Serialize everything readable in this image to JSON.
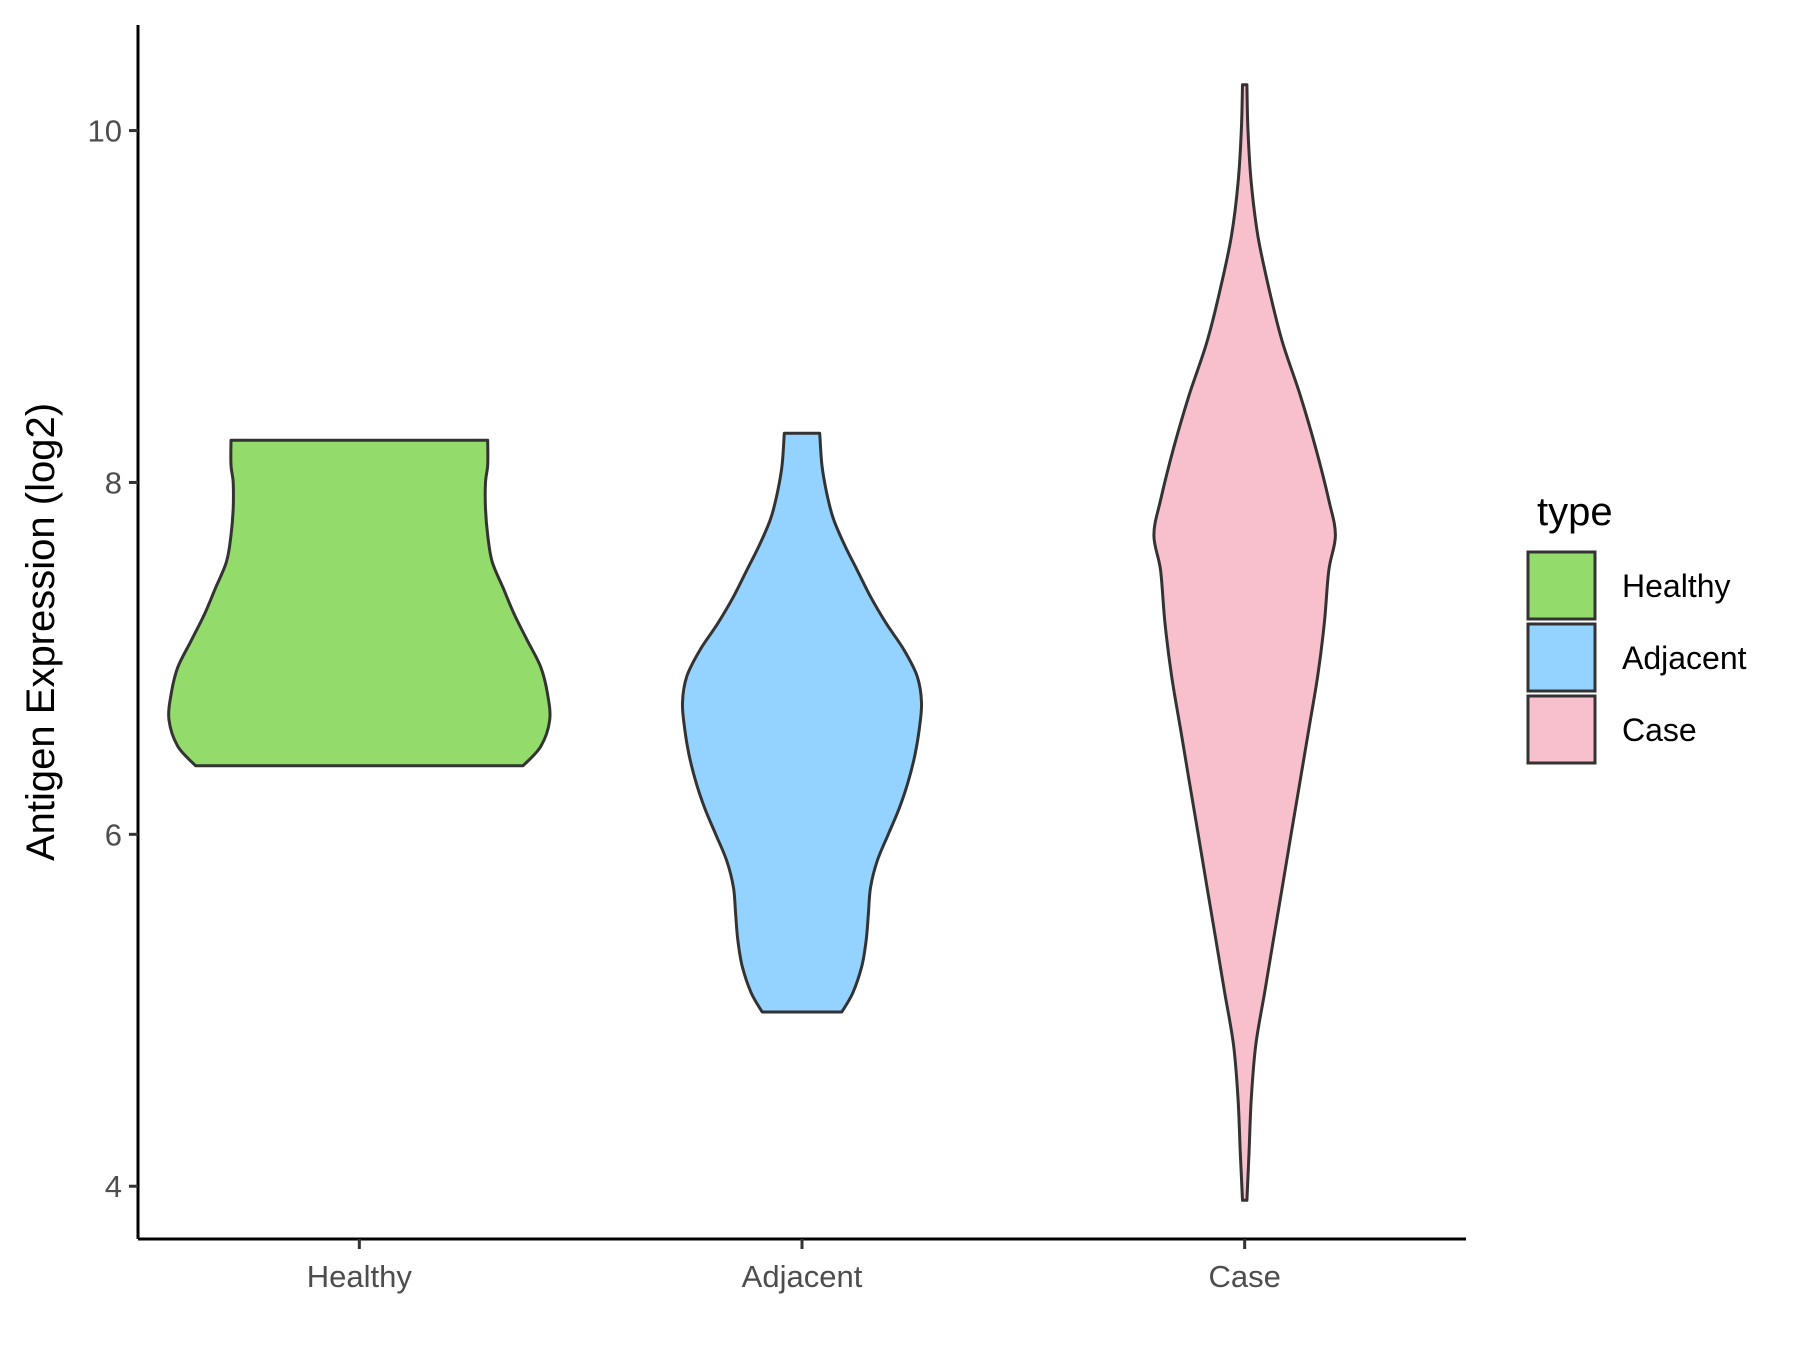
{
  "chart_data": {
    "type": "violin",
    "title": "",
    "xlabel": "",
    "ylabel": "Antigen Expression (log2)",
    "ylim": [
      3.7,
      10.6
    ],
    "yticks": [
      4,
      6,
      8,
      10
    ],
    "categories": [
      "Healthy",
      "Adjacent",
      "Case"
    ],
    "legend": {
      "title": "type",
      "placement": "right",
      "entries": [
        "Healthy",
        "Adjacent",
        "Case"
      ]
    },
    "grid": false,
    "series": [
      {
        "name": "Healthy",
        "color": "#93DB6A",
        "min": 6.39,
        "max": 8.24,
        "profile": [
          [
            6.39,
            0.74
          ],
          [
            6.5,
            0.82
          ],
          [
            6.65,
            0.86
          ],
          [
            6.8,
            0.85
          ],
          [
            6.95,
            0.82
          ],
          [
            7.1,
            0.76
          ],
          [
            7.25,
            0.7
          ],
          [
            7.4,
            0.65
          ],
          [
            7.55,
            0.6
          ],
          [
            7.7,
            0.58
          ],
          [
            7.85,
            0.57
          ],
          [
            8.0,
            0.57
          ],
          [
            8.1,
            0.58
          ],
          [
            8.24,
            0.58
          ]
        ]
      },
      {
        "name": "Adjacent",
        "color": "#94D2FF",
        "min": 4.99,
        "max": 8.28,
        "profile": [
          [
            4.99,
            0.18
          ],
          [
            5.1,
            0.23
          ],
          [
            5.25,
            0.27
          ],
          [
            5.4,
            0.29
          ],
          [
            5.55,
            0.3
          ],
          [
            5.7,
            0.31
          ],
          [
            5.85,
            0.34
          ],
          [
            6.0,
            0.39
          ],
          [
            6.15,
            0.44
          ],
          [
            6.3,
            0.48
          ],
          [
            6.45,
            0.51
          ],
          [
            6.6,
            0.53
          ],
          [
            6.75,
            0.54
          ],
          [
            6.9,
            0.52
          ],
          [
            7.05,
            0.46
          ],
          [
            7.2,
            0.38
          ],
          [
            7.35,
            0.31
          ],
          [
            7.5,
            0.25
          ],
          [
            7.65,
            0.19
          ],
          [
            7.8,
            0.14
          ],
          [
            7.95,
            0.11
          ],
          [
            8.1,
            0.09
          ],
          [
            8.28,
            0.08
          ]
        ]
      },
      {
        "name": "Case",
        "color": "#F8C0CC",
        "min": 3.92,
        "max": 10.26,
        "profile": [
          [
            3.92,
            0.01
          ],
          [
            4.2,
            0.02
          ],
          [
            4.5,
            0.03
          ],
          [
            4.8,
            0.05
          ],
          [
            5.1,
            0.09
          ],
          [
            5.4,
            0.13
          ],
          [
            5.7,
            0.17
          ],
          [
            6.0,
            0.21
          ],
          [
            6.3,
            0.25
          ],
          [
            6.6,
            0.29
          ],
          [
            6.9,
            0.33
          ],
          [
            7.2,
            0.36
          ],
          [
            7.5,
            0.38
          ],
          [
            7.7,
            0.41
          ],
          [
            7.9,
            0.38
          ],
          [
            8.2,
            0.32
          ],
          [
            8.5,
            0.25
          ],
          [
            8.8,
            0.17
          ],
          [
            9.1,
            0.11
          ],
          [
            9.4,
            0.06
          ],
          [
            9.7,
            0.03
          ],
          [
            10.0,
            0.015
          ],
          [
            10.26,
            0.01
          ]
        ]
      }
    ]
  }
}
